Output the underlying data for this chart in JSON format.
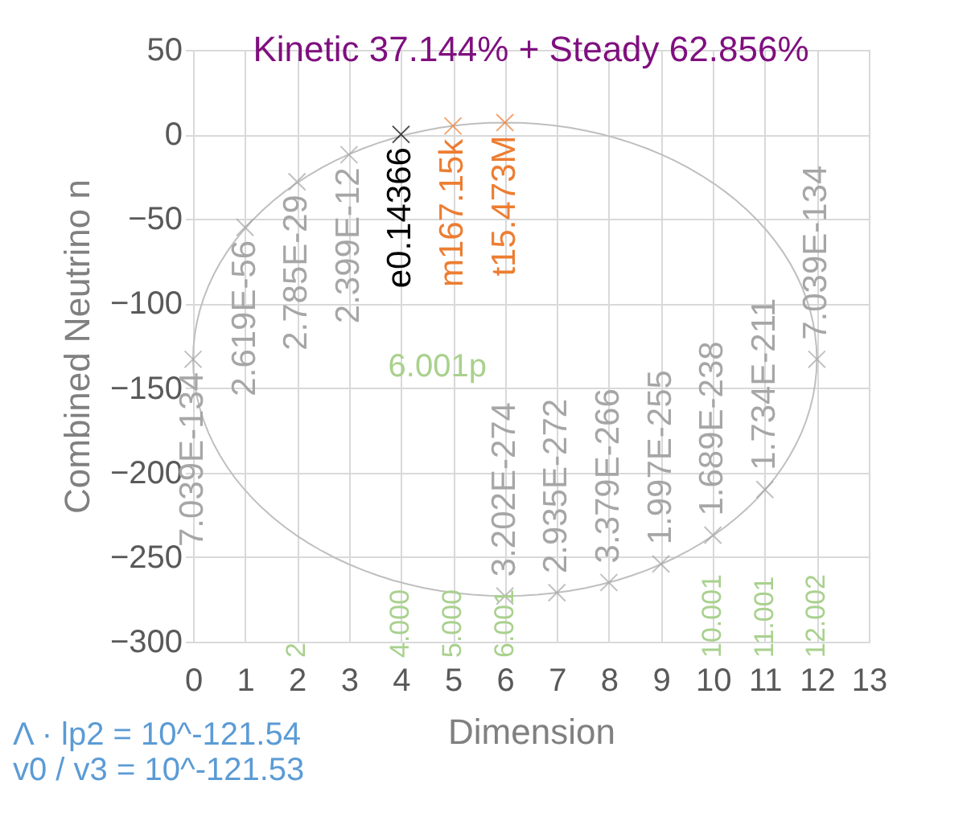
{
  "chart_data": {
    "type": "scatter",
    "title": "Kinetic 37.144% + Steady 62.856%",
    "xlabel": "Dimension",
    "ylabel": "Combined Neutrino n",
    "xlim": [
      0,
      13
    ],
    "xticks": [
      0,
      1,
      2,
      3,
      4,
      5,
      6,
      7,
      8,
      9,
      10,
      11,
      12,
      13
    ],
    "ylim": [
      -300,
      50
    ],
    "yticks": [
      -300,
      -250,
      -200,
      -150,
      -100,
      -50,
      0,
      50
    ],
    "grid": true,
    "marker": "cross",
    "series": [
      {
        "color": "#a6a6a6",
        "x": [
          0,
          1,
          2,
          3,
          6,
          7,
          8,
          9,
          10,
          11,
          12
        ],
        "values": [
          -133,
          -55,
          -28,
          -12,
          -273,
          -271,
          -265,
          -254,
          -237,
          -210,
          -133
        ]
      },
      {
        "color": "#000000",
        "x": [
          4
        ],
        "values": [
          0
        ]
      },
      {
        "color": "#ed7d31",
        "x": [
          5,
          6
        ],
        "values": [
          5,
          7
        ]
      }
    ],
    "annotations": [
      {
        "text": "7.039E-134",
        "x": 0,
        "y": -133
      },
      {
        "text": "2.619E-56",
        "x": 1,
        "y": -55
      },
      {
        "text": "2.785E-29",
        "x": 2,
        "y": -28
      },
      {
        "text": "2.399E-12",
        "x": 3,
        "y": -12
      },
      {
        "text": "3.202E-274",
        "x": 6,
        "y": -273
      },
      {
        "text": "2.935E-272",
        "x": 7,
        "y": -271
      },
      {
        "text": "3.379E-266",
        "x": 8,
        "y": -265
      },
      {
        "text": "1.997E-255",
        "x": 9,
        "y": -254
      },
      {
        "text": "1.689E-238",
        "x": 10,
        "y": -237
      },
      {
        "text": "1.734E-211",
        "x": 11,
        "y": -210
      },
      {
        "text": "7.039E-134",
        "x": 12,
        "y": -133
      },
      {
        "text": "e0.14366",
        "x": 4,
        "y": 0
      },
      {
        "text": "m167.15k",
        "x": 5,
        "y": 5
      },
      {
        "text": "t15.473M",
        "x": 6,
        "y": 7
      },
      "6.001p",
      "2",
      "4.000",
      "5.000",
      "6.001",
      "10.001",
      "11.001",
      "12.002",
      "Λ · lp2 = 10^-121.54",
      "v0 / v3 = 10^-121.53"
    ]
  }
}
